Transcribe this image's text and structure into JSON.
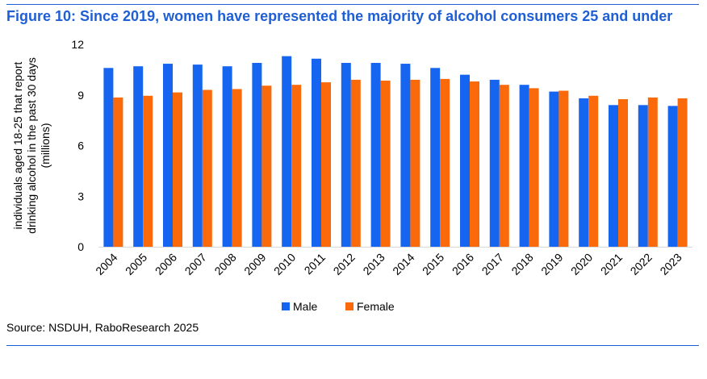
{
  "title": "Figure 10: Since 2019, women have represented the majority of alcohol consumers 25 and under",
  "source": "Source: NSDUH, RaboResearch 2025",
  "colors": {
    "male": "#1565f0",
    "female": "#fa6a0a",
    "title": "#1f5fd6"
  },
  "chart_data": {
    "type": "bar",
    "title": "",
    "xlabel": "",
    "ylabel": "individuals aged 18-25 that report drinking alcohol in the past 30 days (millions)",
    "ylabel_lines": [
      "individuals aged 18-25 that report",
      "drinking alcohol in the past 30 days",
      "(millions)"
    ],
    "ylim": [
      0,
      12
    ],
    "yticks": [
      0,
      3,
      6,
      9,
      12
    ],
    "categories": [
      "2004",
      "2005",
      "2006",
      "2007",
      "2008",
      "2009",
      "2010",
      "2011",
      "2012",
      "2013",
      "2014",
      "2015",
      "2016",
      "2017",
      "2018",
      "2019",
      "2020",
      "2021",
      "2022",
      "2023"
    ],
    "series": [
      {
        "name": "Male",
        "values": [
          10.6,
          10.7,
          10.85,
          10.8,
          10.7,
          10.9,
          11.3,
          11.15,
          10.9,
          10.9,
          10.85,
          10.6,
          10.2,
          9.9,
          9.6,
          9.2,
          8.8,
          8.4,
          8.4,
          8.35
        ]
      },
      {
        "name": "Female",
        "values": [
          8.85,
          8.95,
          9.15,
          9.3,
          9.35,
          9.55,
          9.6,
          9.75,
          9.9,
          9.85,
          9.9,
          9.95,
          9.8,
          9.6,
          9.4,
          9.25,
          8.95,
          8.75,
          8.85,
          8.8
        ]
      }
    ],
    "legend_position": "bottom-center",
    "grid": false
  }
}
